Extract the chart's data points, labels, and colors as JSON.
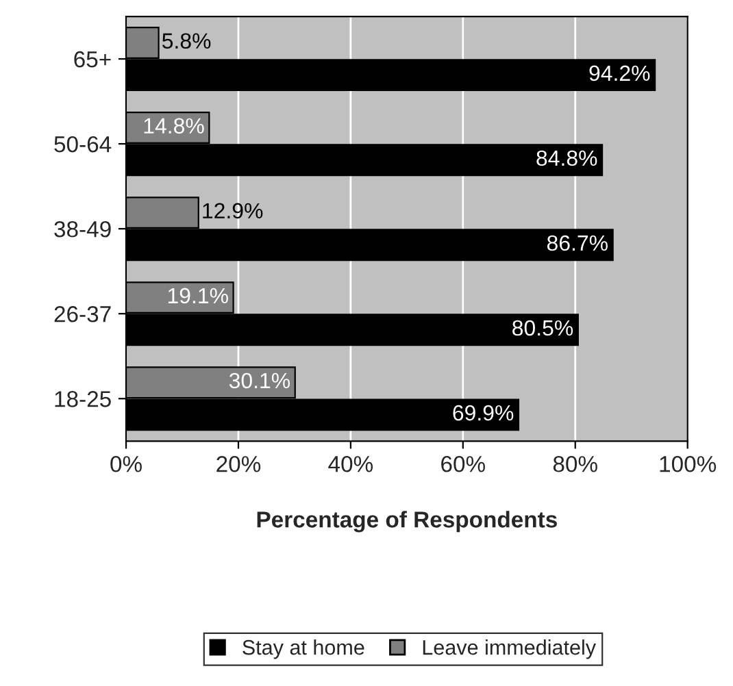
{
  "chart_data": {
    "type": "bar",
    "orientation": "horizontal",
    "xlabel": "Percentage of Respondents",
    "categories": [
      "65+",
      "50-64",
      "38-49",
      "26-37",
      "18-25"
    ],
    "series": [
      {
        "name": "Stay at home",
        "color": "#000000",
        "values": [
          94.2,
          84.8,
          86.7,
          80.5,
          69.9
        ],
        "value_labels": [
          "94.2%",
          "84.8%",
          "86.7%",
          "80.5%",
          "69.9%"
        ]
      },
      {
        "name": "Leave immediately",
        "color": "#808080",
        "values": [
          5.8,
          14.8,
          12.9,
          19.1,
          30.1
        ],
        "value_labels": [
          "5.8%",
          "14.8%",
          "12.9%",
          "19.1%",
          "30.1%"
        ]
      }
    ],
    "xlim": [
      0,
      100
    ],
    "xticks": [
      {
        "value": 0,
        "label": "0%"
      },
      {
        "value": 20,
        "label": "20%"
      },
      {
        "value": 40,
        "label": "40%"
      },
      {
        "value": 60,
        "label": "60%"
      },
      {
        "value": 80,
        "label": "80%"
      },
      {
        "value": 100,
        "label": "100%"
      }
    ],
    "grid": "x",
    "legend": "bottom"
  }
}
